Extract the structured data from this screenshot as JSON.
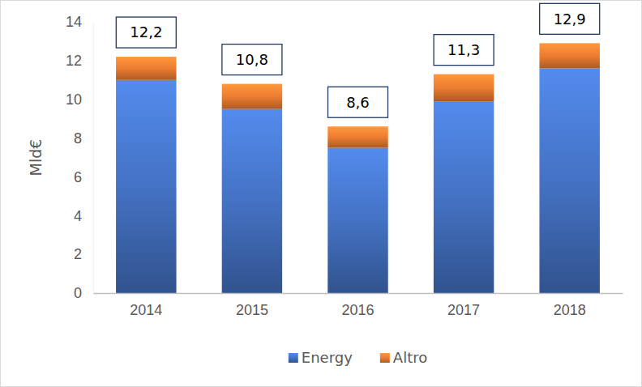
{
  "chart_data": {
    "type": "bar",
    "stacked": true,
    "y_label": "Mld€",
    "categories": [
      "2014",
      "2015",
      "2016",
      "2017",
      "2018"
    ],
    "series": [
      {
        "name": "Energy",
        "color": "#4472c4",
        "values": [
          11.0,
          9.5,
          7.5,
          9.9,
          11.6
        ]
      },
      {
        "name": "Altro",
        "color": "#ed7d31",
        "values": [
          1.2,
          1.3,
          1.1,
          1.4,
          1.3
        ]
      }
    ],
    "totals": {
      "values": [
        12.2,
        10.8,
        8.6,
        11.3,
        12.9
      ],
      "value_labels": [
        "12,2",
        "10,8",
        "8,6",
        "11,3",
        "12,9"
      ]
    },
    "ylim": [
      0,
      14
    ],
    "yticks": [
      0,
      2,
      4,
      6,
      8,
      10,
      12,
      14
    ],
    "grid": false,
    "legend": "bottom"
  }
}
